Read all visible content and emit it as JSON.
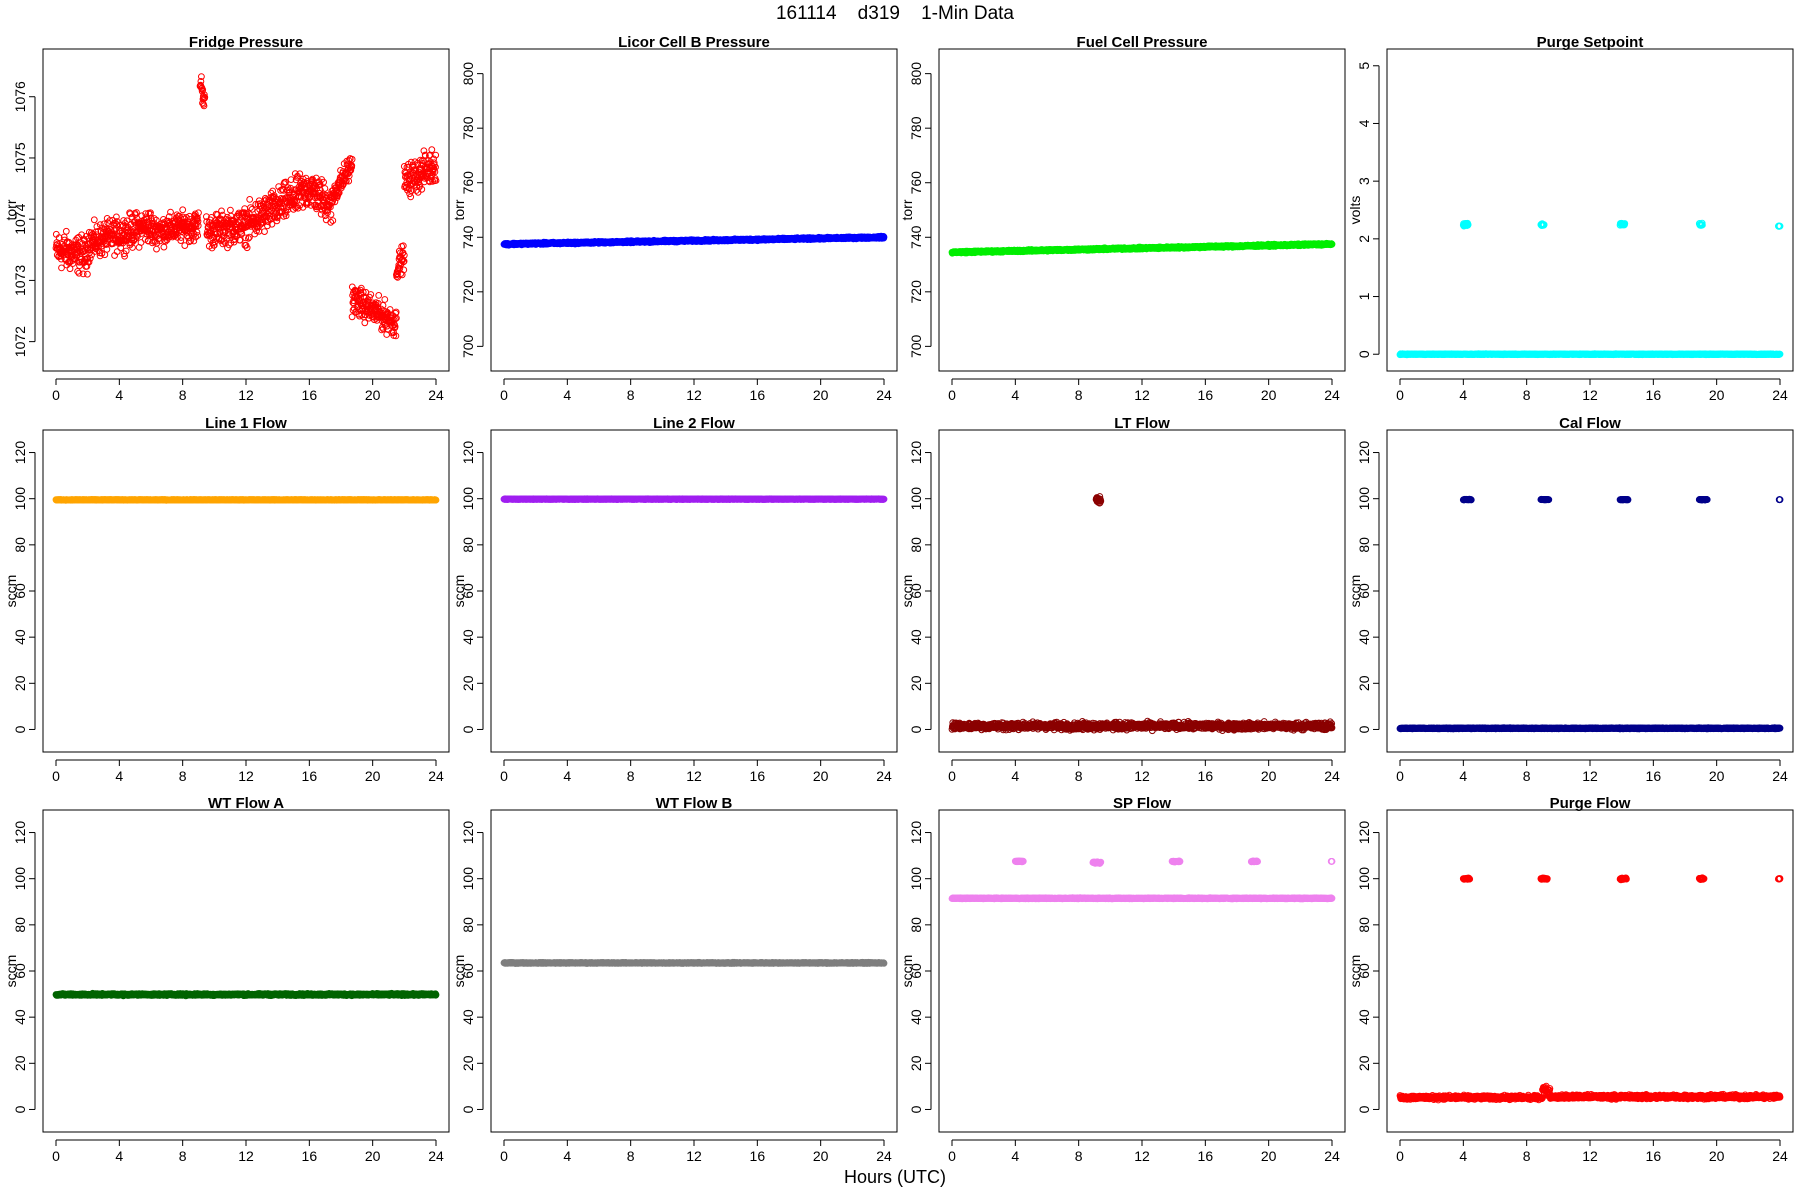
{
  "figure": {
    "title": "161114    d319    1-Min Data",
    "xlabel": "Hours (UTC)"
  },
  "chart_data": [
    {
      "type": "scatter",
      "title": "Fridge Pressure",
      "ylabel": "torr",
      "color": "#ff0000",
      "marker": "open-circle",
      "xlim": [
        0,
        24
      ],
      "ylim": [
        1071.7,
        1076.6
      ],
      "xticks": [
        "0",
        "4",
        "8",
        "12",
        "16",
        "20",
        "24"
      ],
      "yticks": [
        "1072",
        "1073",
        "1074",
        "1075",
        "1076"
      ],
      "segments": [
        {
          "x": [
            0,
            2
          ],
          "y": [
            1073.5,
            1073.4
          ],
          "noise": 0.45
        },
        {
          "x": [
            2,
            6
          ],
          "y": [
            1073.6,
            1073.9
          ],
          "noise": 0.4
        },
        {
          "x": [
            6,
            9
          ],
          "y": [
            1073.8,
            1073.9
          ],
          "noise": 0.35
        },
        {
          "x": [
            9.1,
            9.4
          ],
          "y": [
            1076.3,
            1075.9
          ],
          "noise": 0.3
        },
        {
          "x": [
            9.5,
            12
          ],
          "y": [
            1073.8,
            1073.9
          ],
          "noise": 0.4
        },
        {
          "x": [
            12,
            16
          ],
          "y": [
            1073.9,
            1074.5
          ],
          "noise": 0.45
        },
        {
          "x": [
            16,
            17.5
          ],
          "y": [
            1074.5,
            1074.2
          ],
          "noise": 0.45
        },
        {
          "x": [
            17.5,
            18.7
          ],
          "y": [
            1074.4,
            1074.9
          ],
          "noise": 0.3
        },
        {
          "x": [
            18.7,
            21.5
          ],
          "y": [
            1072.7,
            1072.3
          ],
          "noise": 0.35
        },
        {
          "x": [
            21.5,
            22
          ],
          "y": [
            1073.2,
            1073.4
          ],
          "noise": 0.3
        },
        {
          "x": [
            22,
            24
          ],
          "y": [
            1074.6,
            1074.9
          ],
          "noise": 0.4
        }
      ]
    },
    {
      "type": "scatter",
      "title": "Licor Cell B Pressure",
      "ylabel": "torr",
      "color": "#0000ff",
      "marker": "open-circle",
      "xlim": [
        0,
        24
      ],
      "ylim": [
        695,
        805
      ],
      "xticks": [
        "0",
        "4",
        "8",
        "12",
        "16",
        "20",
        "24"
      ],
      "yticks": [
        "700",
        "720",
        "740",
        "760",
        "780",
        "800"
      ],
      "segments": [
        {
          "x": [
            0,
            24
          ],
          "y": [
            737.5,
            740
          ],
          "noise": 0.5
        }
      ]
    },
    {
      "type": "scatter",
      "title": "Fuel Cell Pressure",
      "ylabel": "torr",
      "color": "#00ee00",
      "marker": "open-circle",
      "xlim": [
        0,
        24
      ],
      "ylim": [
        695,
        805
      ],
      "xticks": [
        "0",
        "4",
        "8",
        "12",
        "16",
        "20",
        "24"
      ],
      "yticks": [
        "700",
        "720",
        "740",
        "760",
        "780",
        "800"
      ],
      "segments": [
        {
          "x": [
            0,
            24
          ],
          "y": [
            734.5,
            737.5
          ],
          "noise": 0.5
        }
      ]
    },
    {
      "type": "scatter",
      "title": "Purge Setpoint",
      "ylabel": "volts",
      "color": "#00ffff",
      "marker": "open-circle",
      "xlim": [
        0,
        24
      ],
      "ylim": [
        -0.1,
        5.1
      ],
      "xticks": [
        "0",
        "4",
        "8",
        "12",
        "16",
        "20",
        "24"
      ],
      "yticks": [
        "0",
        "1",
        "2",
        "3",
        "4",
        "5"
      ],
      "segments": [
        {
          "x": [
            0,
            24
          ],
          "y": [
            0,
            0
          ],
          "noise": 0.01
        },
        {
          "x": [
            4.0,
            4.3
          ],
          "y": [
            2.25,
            2.25
          ],
          "noise": 0.04
        },
        {
          "x": [
            8.9,
            9.1
          ],
          "y": [
            2.25,
            2.25
          ],
          "noise": 0.04
        },
        {
          "x": [
            13.9,
            14.2
          ],
          "y": [
            2.25,
            2.25
          ],
          "noise": 0.04
        },
        {
          "x": [
            18.9,
            19.1
          ],
          "y": [
            2.25,
            2.25
          ],
          "noise": 0.04
        },
        {
          "x": [
            23.9,
            24.0
          ],
          "y": [
            2.22,
            2.22
          ],
          "noise": 0.01
        }
      ]
    },
    {
      "type": "scatter",
      "title": "Line 1 Flow",
      "ylabel": "sccm",
      "color": "#ffa500",
      "marker": "open-circle",
      "xlim": [
        0,
        24
      ],
      "ylim": [
        -5,
        125
      ],
      "xticks": [
        "0",
        "4",
        "8",
        "12",
        "16",
        "20",
        "24"
      ],
      "yticks": [
        "0",
        "20",
        "40",
        "60",
        "80",
        "100",
        "120"
      ],
      "segments": [
        {
          "x": [
            0,
            24
          ],
          "y": [
            99.5,
            99.5
          ],
          "noise": 0.2
        }
      ]
    },
    {
      "type": "scatter",
      "title": "Line 2 Flow",
      "ylabel": "sccm",
      "color": "#a020f0",
      "marker": "open-circle",
      "xlim": [
        0,
        24
      ],
      "ylim": [
        -5,
        125
      ],
      "xticks": [
        "0",
        "4",
        "8",
        "12",
        "16",
        "20",
        "24"
      ],
      "yticks": [
        "0",
        "20",
        "40",
        "60",
        "80",
        "100",
        "120"
      ],
      "segments": [
        {
          "x": [
            0,
            24
          ],
          "y": [
            99.8,
            99.8
          ],
          "noise": 0.2
        }
      ]
    },
    {
      "type": "scatter",
      "title": "LT Flow",
      "ylabel": "sccm",
      "color": "#8b0000",
      "marker": "open-circle",
      "xlim": [
        0,
        24
      ],
      "ylim": [
        -5,
        125
      ],
      "xticks": [
        "0",
        "4",
        "8",
        "12",
        "16",
        "20",
        "24"
      ],
      "yticks": [
        "0",
        "20",
        "40",
        "60",
        "80",
        "100",
        "120"
      ],
      "segments": [
        {
          "x": [
            0,
            24
          ],
          "y": [
            1.5,
            1.5
          ],
          "noise": 2.2
        },
        {
          "x": [
            9.1,
            9.4
          ],
          "y": [
            99.5,
            99.5
          ],
          "noise": 2.5
        }
      ]
    },
    {
      "type": "scatter",
      "title": "Cal Flow",
      "ylabel": "sccm",
      "color": "#00008b",
      "marker": "open-circle",
      "xlim": [
        0,
        24
      ],
      "ylim": [
        -5,
        125
      ],
      "xticks": [
        "0",
        "4",
        "8",
        "12",
        "16",
        "20",
        "24"
      ],
      "yticks": [
        "0",
        "20",
        "40",
        "60",
        "80",
        "100",
        "120"
      ],
      "segments": [
        {
          "x": [
            0,
            24
          ],
          "y": [
            0.5,
            0.5
          ],
          "noise": 0.3
        },
        {
          "x": [
            4.0,
            4.5
          ],
          "y": [
            99.6,
            99.6
          ],
          "noise": 0.2
        },
        {
          "x": [
            8.9,
            9.4
          ],
          "y": [
            99.6,
            99.6
          ],
          "noise": 0.2
        },
        {
          "x": [
            13.9,
            14.4
          ],
          "y": [
            99.6,
            99.6
          ],
          "noise": 0.2
        },
        {
          "x": [
            18.9,
            19.4
          ],
          "y": [
            99.6,
            99.6
          ],
          "noise": 0.2
        },
        {
          "x": [
            23.95,
            24.0
          ],
          "y": [
            99.6,
            99.6
          ],
          "noise": 0.05
        }
      ]
    },
    {
      "type": "scatter",
      "title": "WT Flow A",
      "ylabel": "sccm",
      "color": "#006400",
      "marker": "open-circle",
      "xlim": [
        0,
        24
      ],
      "ylim": [
        -5,
        125
      ],
      "xticks": [
        "0",
        "4",
        "8",
        "12",
        "16",
        "20",
        "24"
      ],
      "yticks": [
        "0",
        "20",
        "40",
        "60",
        "80",
        "100",
        "120"
      ],
      "segments": [
        {
          "x": [
            0,
            24
          ],
          "y": [
            49.8,
            49.8
          ],
          "noise": 0.6
        }
      ]
    },
    {
      "type": "scatter",
      "title": "WT Flow B",
      "ylabel": "sccm",
      "color": "#7f7f7f",
      "marker": "open-circle",
      "xlim": [
        0,
        24
      ],
      "ylim": [
        -5,
        125
      ],
      "xticks": [
        "0",
        "4",
        "8",
        "12",
        "16",
        "20",
        "24"
      ],
      "yticks": [
        "0",
        "20",
        "40",
        "60",
        "80",
        "100",
        "120"
      ],
      "segments": [
        {
          "x": [
            0,
            24
          ],
          "y": [
            63.5,
            63.5
          ],
          "noise": 0.3
        }
      ]
    },
    {
      "type": "scatter",
      "title": "SP Flow",
      "ylabel": "sccm",
      "color": "#ee82ee",
      "marker": "open-circle",
      "xlim": [
        0,
        24
      ],
      "ylim": [
        -5,
        125
      ],
      "xticks": [
        "0",
        "4",
        "8",
        "12",
        "16",
        "20",
        "24"
      ],
      "yticks": [
        "0",
        "20",
        "40",
        "60",
        "80",
        "100",
        "120"
      ],
      "segments": [
        {
          "x": [
            0,
            24
          ],
          "y": [
            91.5,
            91.5
          ],
          "noise": 0.3
        },
        {
          "x": [
            4.0,
            4.5
          ],
          "y": [
            107.5,
            107.5
          ],
          "noise": 0.3
        },
        {
          "x": [
            8.9,
            9.4
          ],
          "y": [
            107,
            107
          ],
          "noise": 0.6
        },
        {
          "x": [
            13.9,
            14.4
          ],
          "y": [
            107.5,
            107.5
          ],
          "noise": 0.3
        },
        {
          "x": [
            18.9,
            19.3
          ],
          "y": [
            107.5,
            107.5
          ],
          "noise": 0.3
        },
        {
          "x": [
            23.95,
            24.0
          ],
          "y": [
            107.5,
            107.5
          ],
          "noise": 0.05
        }
      ]
    },
    {
      "type": "scatter",
      "title": "Purge Flow",
      "ylabel": "sccm",
      "color": "#ff0000",
      "marker": "open-circle",
      "xlim": [
        0,
        24
      ],
      "ylim": [
        -5,
        125
      ],
      "xticks": [
        "0",
        "4",
        "8",
        "12",
        "16",
        "20",
        "24"
      ],
      "yticks": [
        "0",
        "20",
        "40",
        "60",
        "80",
        "100",
        "120"
      ],
      "segments": [
        {
          "x": [
            0,
            9
          ],
          "y": [
            5.2,
            5.2
          ],
          "noise": 1.2
        },
        {
          "x": [
            9,
            9.5
          ],
          "y": [
            9,
            7
          ],
          "noise": 2.5
        },
        {
          "x": [
            9.5,
            24
          ],
          "y": [
            5.5,
            5.5
          ],
          "noise": 1.3
        },
        {
          "x": [
            4.0,
            4.4
          ],
          "y": [
            100,
            100
          ],
          "noise": 0.5
        },
        {
          "x": [
            8.9,
            9.3
          ],
          "y": [
            100,
            100
          ],
          "noise": 0.5
        },
        {
          "x": [
            13.9,
            14.3
          ],
          "y": [
            100,
            100
          ],
          "noise": 0.6
        },
        {
          "x": [
            18.9,
            19.2
          ],
          "y": [
            100,
            100
          ],
          "noise": 0.5
        },
        {
          "x": [
            23.9,
            24.0
          ],
          "y": [
            100,
            100
          ],
          "noise": 0.4
        }
      ]
    }
  ]
}
